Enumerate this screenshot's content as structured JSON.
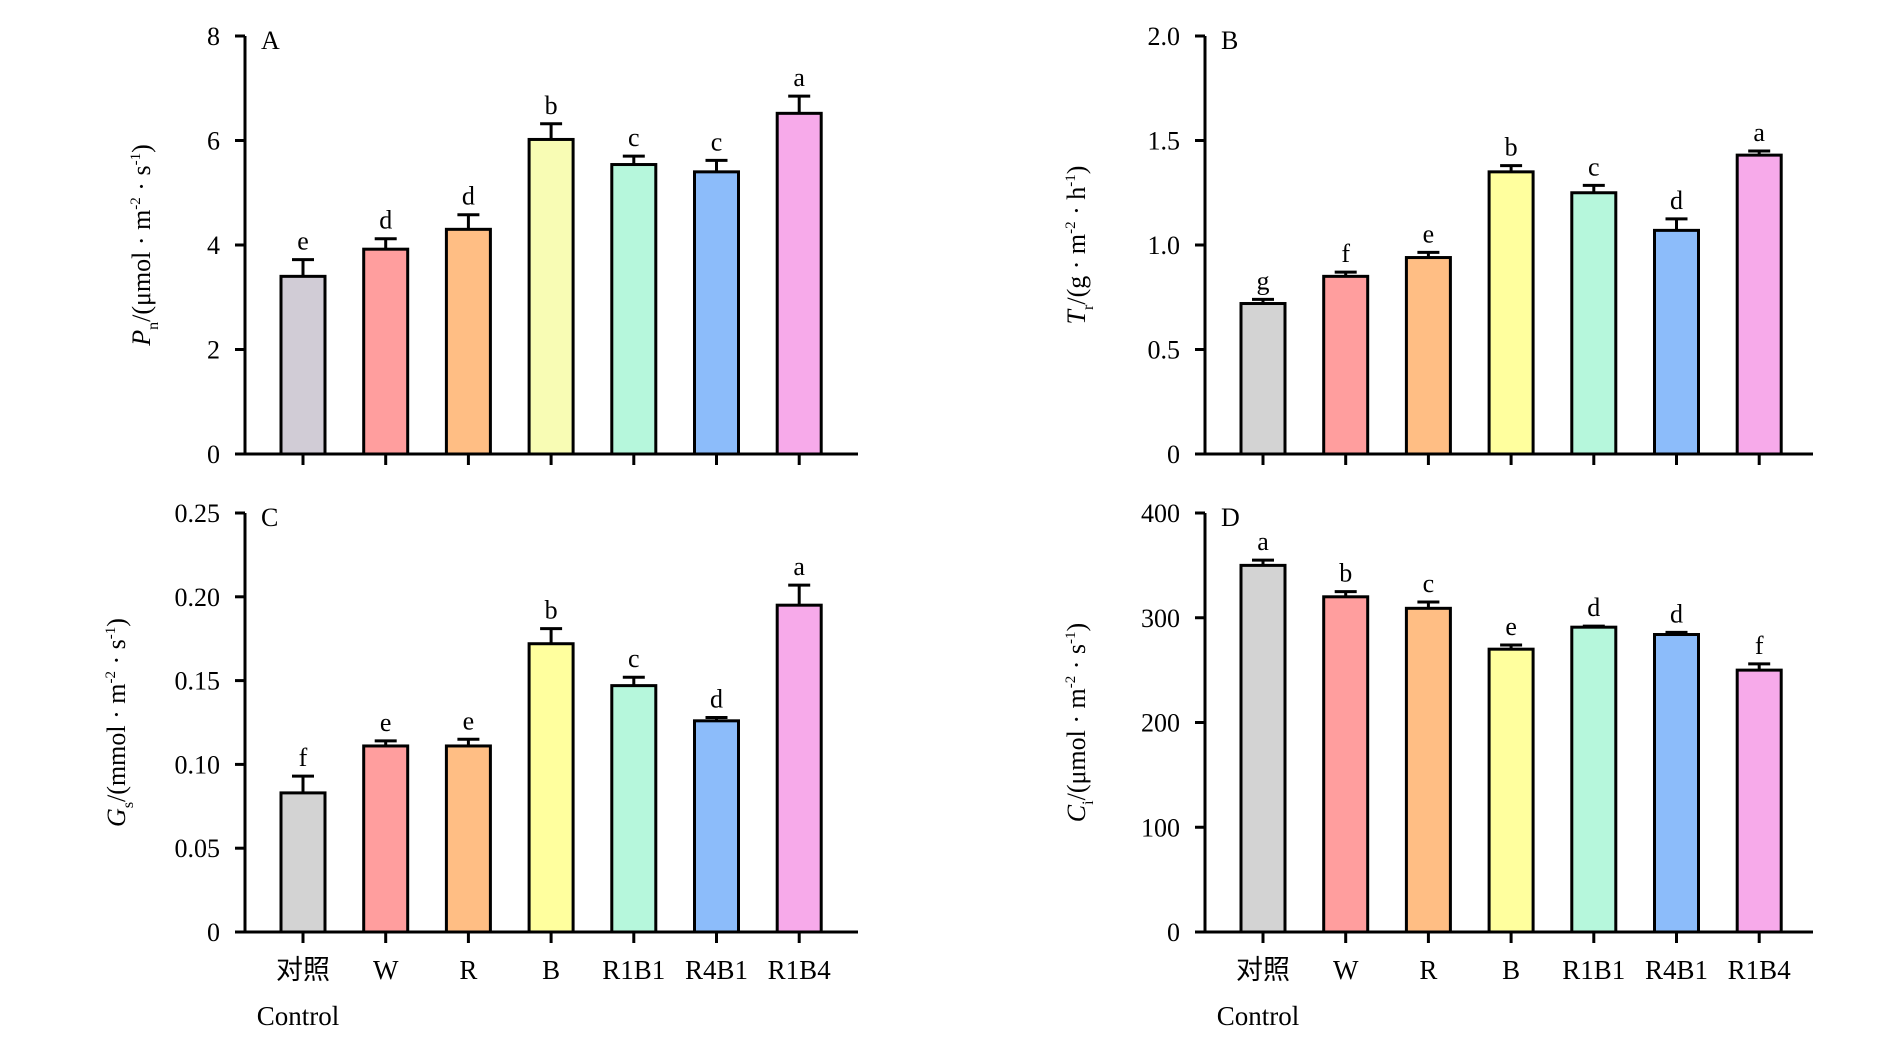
{
  "chart_data": [
    {
      "type": "bar",
      "panel_label": "A",
      "ylabel_symbol": "P",
      "ylabel_sub": "n",
      "ylabel_unit": "/(μmol · m",
      "ylabel_unit_sup1": "-2",
      "ylabel_unit_mid": " · s",
      "ylabel_unit_sup2": "-1",
      "ylabel_unit_end": ")",
      "ylim": [
        0,
        8
      ],
      "yticks": [
        "0",
        "2",
        "4",
        "6",
        "8"
      ],
      "categories": [
        "对照",
        "W",
        "R",
        "B",
        "R1B1",
        "R4B1",
        "R1B4"
      ],
      "values": [
        3.4,
        3.92,
        4.3,
        6.02,
        5.54,
        5.4,
        6.52
      ],
      "errors": [
        0.32,
        0.2,
        0.28,
        0.3,
        0.16,
        0.22,
        0.33
      ],
      "letters": [
        "e",
        "d",
        "d",
        "b",
        "c",
        "c",
        "a"
      ]
    },
    {
      "type": "bar",
      "panel_label": "B",
      "ylabel_symbol": "T",
      "ylabel_sub": "r",
      "ylabel_unit": "/(g · m",
      "ylabel_unit_sup1": "-2",
      "ylabel_unit_mid": " · h",
      "ylabel_unit_sup2": "-1",
      "ylabel_unit_end": ")",
      "ylim": [
        0,
        2.0
      ],
      "yticks": [
        "0",
        "0.5",
        "1.0",
        "1.5",
        "2.0"
      ],
      "categories": [
        "对照",
        "W",
        "R",
        "B",
        "R1B1",
        "R4B1",
        "R1B4"
      ],
      "values": [
        0.72,
        0.85,
        0.94,
        1.35,
        1.25,
        1.07,
        1.43
      ],
      "errors": [
        0.02,
        0.02,
        0.025,
        0.03,
        0.035,
        0.055,
        0.02
      ],
      "letters": [
        "g",
        "f",
        "e",
        "b",
        "c",
        "d",
        "a"
      ]
    },
    {
      "type": "bar",
      "panel_label": "C",
      "ylabel_symbol": "G",
      "ylabel_sub": "s",
      "ylabel_unit": "/(mmol · m",
      "ylabel_unit_sup1": "-2",
      "ylabel_unit_mid": " · s",
      "ylabel_unit_sup2": "-1",
      "ylabel_unit_end": ")",
      "ylim": [
        0,
        0.25
      ],
      "yticks": [
        "0",
        "0.05",
        "0.10",
        "0.15",
        "0.20",
        "0.25"
      ],
      "categories": [
        "对照",
        "W",
        "R",
        "B",
        "R1B1",
        "R4B1",
        "R1B4"
      ],
      "values": [
        0.083,
        0.111,
        0.111,
        0.172,
        0.147,
        0.126,
        0.195
      ],
      "errors": [
        0.01,
        0.003,
        0.004,
        0.009,
        0.005,
        0.002,
        0.012
      ],
      "letters": [
        "f",
        "e",
        "e",
        "b",
        "c",
        "d",
        "a"
      ]
    },
    {
      "type": "bar",
      "panel_label": "D",
      "ylabel_symbol": "C",
      "ylabel_sub": "i",
      "ylabel_unit": "/(μmol · m",
      "ylabel_unit_sup1": "-2",
      "ylabel_unit_mid": " · s",
      "ylabel_unit_sup2": "-1",
      "ylabel_unit_end": ")",
      "ylim": [
        0,
        400
      ],
      "yticks": [
        "0",
        "100",
        "200",
        "300",
        "400"
      ],
      "categories": [
        "对照",
        "W",
        "R",
        "B",
        "R1B1",
        "R4B1",
        "R1B4"
      ],
      "values": [
        350,
        320,
        309,
        270,
        291,
        284,
        250
      ],
      "errors": [
        5,
        5,
        6,
        4,
        1,
        2,
        6
      ],
      "letters": [
        "a",
        "b",
        "c",
        "e",
        "d",
        "d",
        "f"
      ]
    }
  ],
  "x_sublabel": "Control",
  "colors": [
    "#d1ccd6",
    "#ff9e9e",
    "#ffbe84",
    "#f8fcb4",
    "#b6f7dc",
    "#8cbcfa",
    "#f7aaea"
  ],
  "colors_alt": [
    "#d3d3d3",
    "#ff9e9e",
    "#ffbe84",
    "#ffff9e",
    "#b6f7dc",
    "#8cbcfa",
    "#f7aaea"
  ]
}
